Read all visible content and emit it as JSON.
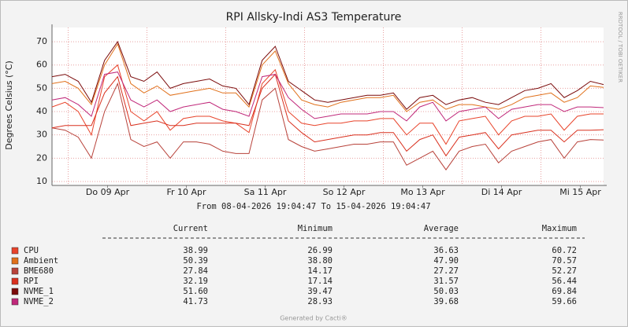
{
  "chart_data": {
    "type": "line",
    "title": "RPI Allsky-Indi AS3 Temperature",
    "y_label": "Degrees Celsius (°C)",
    "time_range": "From 08-04-2026 19:04:47 To 15-04-2026 19:04:47",
    "side_text": "RRDTOOL / TOBI OETIKER",
    "footer": "Generated by Cacti®",
    "x": [
      0,
      4,
      8,
      12,
      16,
      20,
      24,
      28,
      32,
      36,
      40,
      44,
      48,
      52,
      56,
      60,
      64,
      68,
      72,
      76,
      80,
      84,
      88,
      92,
      96,
      100,
      104,
      108,
      112,
      116,
      120,
      124,
      128,
      132,
      136,
      140,
      144,
      148,
      152,
      156,
      160,
      164,
      168
    ],
    "xlim": [
      0,
      168
    ],
    "xticks": [
      {
        "value": 16.92,
        "label": "Do 09 Apr"
      },
      {
        "value": 40.92,
        "label": "Fr 10 Apr"
      },
      {
        "value": 64.92,
        "label": "Sa 11 Apr"
      },
      {
        "value": 88.92,
        "label": "So 12 Apr"
      },
      {
        "value": 112.92,
        "label": "Mo 13 Apr"
      },
      {
        "value": 136.92,
        "label": "Di 14 Apr"
      },
      {
        "value": 160.92,
        "label": "Mi 15 Apr"
      }
    ],
    "xgrid": [
      4.92,
      28.92,
      52.92,
      76.92,
      100.92,
      124.92,
      148.92
    ],
    "ylim": [
      8.3,
      76.1
    ],
    "yticks": [
      10,
      20,
      30,
      40,
      50,
      60,
      70
    ],
    "grid": true,
    "stat_headers": [
      "Current",
      "Minimum",
      "Average",
      "Maximum"
    ],
    "series": [
      {
        "name": "CPU",
        "color": "#e8432a",
        "stats": [
          "38.99",
          "26.99",
          "36.63",
          "60.72"
        ],
        "values": [
          42,
          44,
          40,
          30,
          55,
          60,
          40,
          36,
          40,
          32,
          37,
          38,
          38,
          36,
          35,
          31,
          52,
          58,
          40,
          35,
          34,
          35,
          35,
          36,
          36,
          37,
          37,
          30,
          35,
          35,
          26,
          36,
          37,
          38,
          30,
          36,
          38,
          38,
          39,
          32,
          38,
          39,
          39
        ]
      },
      {
        "name": "Ambient",
        "color": "#e0701a",
        "stats": [
          "50.39",
          "38.80",
          "47.90",
          "70.57"
        ],
        "values": [
          52,
          53,
          50,
          43,
          60,
          69,
          52,
          48,
          51,
          47,
          48,
          49,
          50,
          48,
          48,
          42,
          60,
          66,
          52,
          45,
          43,
          42,
          44,
          45,
          46,
          46,
          47,
          40,
          44,
          45,
          41,
          43,
          43,
          42,
          41,
          43,
          46,
          47,
          48,
          44,
          46,
          51,
          50.4
        ]
      },
      {
        "name": "BME680",
        "color": "#b8423a",
        "stats": [
          "27.84",
          "14.17",
          "27.27",
          "52.27"
        ],
        "values": [
          33,
          32,
          29,
          20,
          40,
          52,
          28,
          25,
          27,
          20,
          27,
          27,
          26,
          23,
          22,
          22,
          45,
          50,
          28,
          25,
          23,
          24,
          25,
          26,
          26,
          27,
          27,
          17,
          20,
          23,
          15,
          23,
          25,
          26,
          18,
          23,
          25,
          27,
          28,
          20,
          27,
          28,
          27.8
        ]
      },
      {
        "name": "RPI",
        "color": "#d9301e",
        "stats": [
          "32.19",
          "17.14",
          "31.57",
          "56.44"
        ],
        "values": [
          33,
          34,
          34,
          34,
          48,
          55,
          34,
          35,
          36,
          34,
          34,
          35,
          35,
          35,
          35,
          34,
          50,
          56,
          36,
          31,
          27,
          28,
          29,
          30,
          30,
          31,
          31,
          23,
          28,
          30,
          21,
          29,
          30,
          31,
          24,
          30,
          31,
          32,
          32,
          27,
          32,
          32,
          32.2
        ]
      },
      {
        "name": "NVME_1",
        "color": "#7a0a0a",
        "stats": [
          "51.60",
          "39.47",
          "50.03",
          "69.84"
        ],
        "values": [
          55,
          56,
          53,
          44,
          62,
          70,
          55,
          53,
          57,
          50,
          52,
          53,
          54,
          51,
          50,
          43,
          62,
          68,
          53,
          49,
          45,
          44,
          45,
          46,
          47,
          47,
          48,
          41,
          46,
          47,
          43,
          45,
          46,
          44,
          43,
          46,
          49,
          50,
          52,
          46,
          49,
          53,
          51.6
        ]
      },
      {
        "name": "NVME_2",
        "color": "#c0287a",
        "stats": [
          "41.73",
          "28.93",
          "39.68",
          "59.66"
        ],
        "values": [
          45,
          46,
          43,
          38,
          56,
          57,
          45,
          42,
          45,
          40,
          42,
          43,
          44,
          41,
          40,
          38,
          55,
          56,
          46,
          41,
          37,
          38,
          39,
          39,
          39,
          40,
          40,
          36,
          42,
          44,
          36,
          40,
          41,
          42,
          37,
          41,
          42,
          43,
          43,
          40,
          42,
          42,
          41.7
        ]
      }
    ]
  }
}
